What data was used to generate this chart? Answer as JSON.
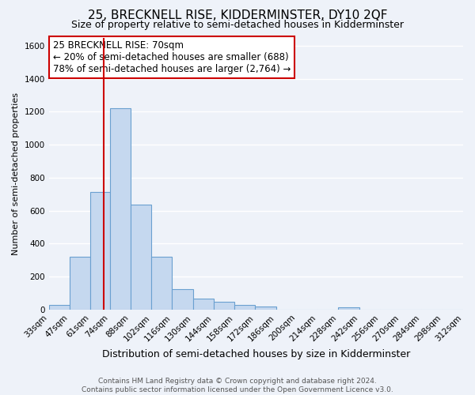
{
  "title": "25, BRECKNELL RISE, KIDDERMINSTER, DY10 2QF",
  "subtitle": "Size of property relative to semi-detached houses in Kidderminster",
  "xlabel": "Distribution of semi-detached houses by size in Kidderminster",
  "ylabel": "Number of semi-detached properties",
  "footer_line1": "Contains HM Land Registry data © Crown copyright and database right 2024.",
  "footer_line2": "Contains public sector information licensed under the Open Government Licence v3.0.",
  "annotation_title": "25 BRECKNELL RISE: 70sqm",
  "annotation_line1": "← 20% of semi-detached houses are smaller (688)",
  "annotation_line2": "78% of semi-detached houses are larger (2,764) →",
  "property_size": 70,
  "bar_edges": [
    33,
    47,
    61,
    74,
    88,
    102,
    116,
    130,
    144,
    158,
    172,
    186,
    200,
    214,
    228,
    242,
    256,
    270,
    284,
    298,
    312
  ],
  "bar_heights": [
    30,
    320,
    715,
    1220,
    635,
    320,
    125,
    65,
    50,
    30,
    20,
    0,
    0,
    0,
    15,
    0,
    0,
    0,
    0,
    0
  ],
  "bar_color": "#c5d8ef",
  "bar_edge_color": "#6aa0d0",
  "vline_color": "#cc0000",
  "vline_x": 70,
  "ylim": [
    0,
    1650
  ],
  "yticks": [
    0,
    200,
    400,
    600,
    800,
    1000,
    1200,
    1400,
    1600
  ],
  "background_color": "#eef2f9",
  "grid_color": "#ffffff",
  "annotation_box_color": "#ffffff",
  "annotation_box_edge": "#cc0000",
  "title_fontsize": 11,
  "subtitle_fontsize": 9,
  "ylabel_fontsize": 8,
  "xlabel_fontsize": 9,
  "tick_fontsize": 7.5,
  "footer_fontsize": 6.5,
  "annotation_fontsize": 8.5
}
